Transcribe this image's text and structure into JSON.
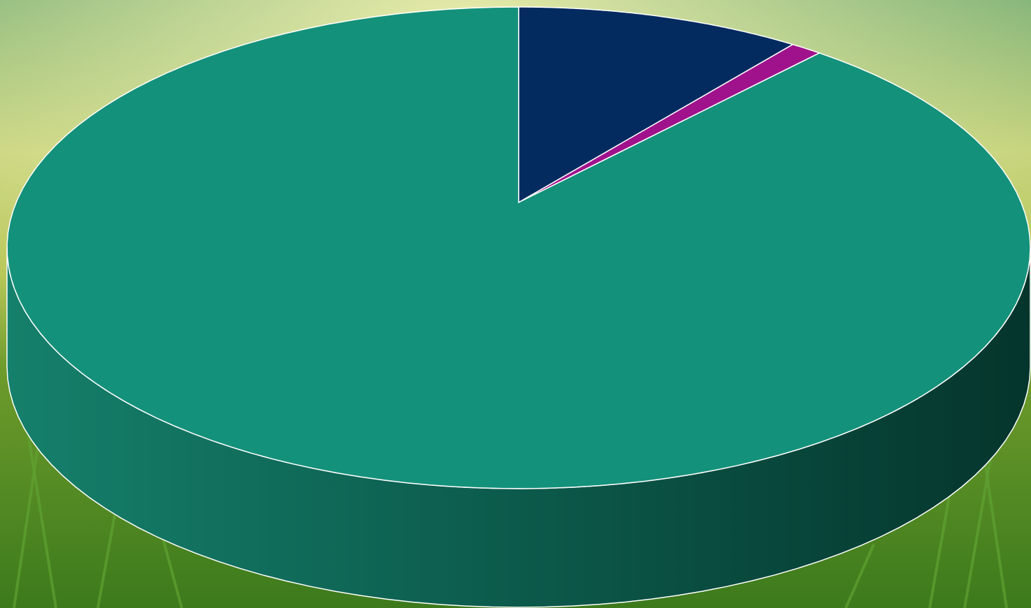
{
  "chart_data": {
    "type": "pie",
    "values": [
      9,
      1,
      90
    ],
    "colors": [
      "#032b60",
      "#a0128c",
      "#14917a"
    ]
  }
}
